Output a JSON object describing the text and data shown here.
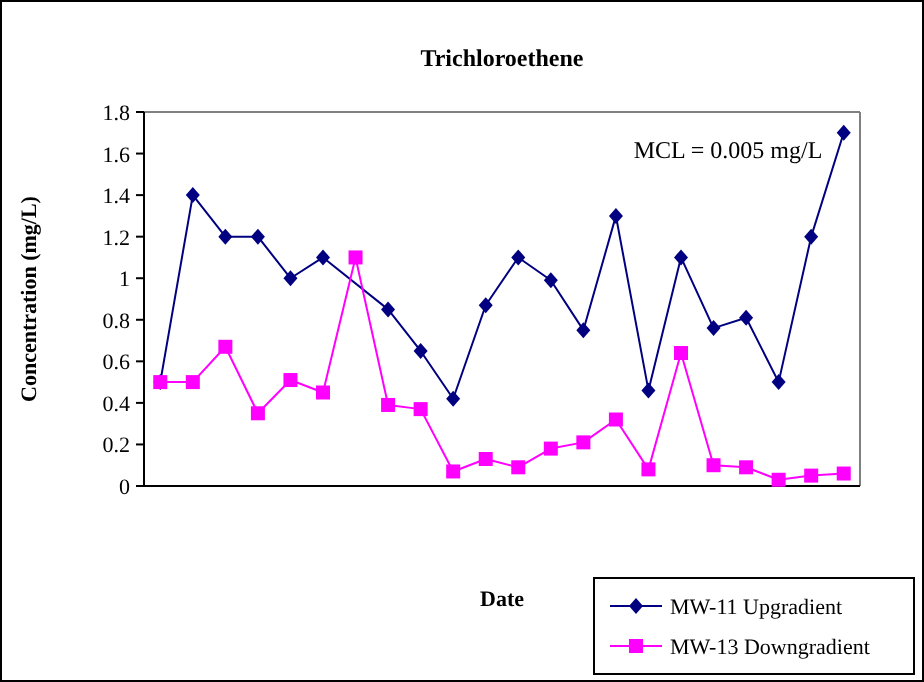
{
  "chart_data": {
    "type": "line",
    "title": "Trichloroethene",
    "xlabel": "Date",
    "ylabel": "Concentration (mg/L)",
    "annotations": [
      "MCL = 0.005 mg/L"
    ],
    "categories": [
      null,
      null,
      null,
      null,
      null,
      null,
      null,
      null,
      null,
      null,
      null,
      null,
      null,
      null,
      null,
      null,
      null,
      null,
      null,
      null,
      null,
      null
    ],
    "series": [
      {
        "name": "MW-11 Upgradient",
        "color": "#000080",
        "marker": "diamond",
        "values": [
          0.5,
          1.4,
          1.2,
          1.2,
          1.0,
          1.1,
          null,
          0.85,
          0.65,
          0.42,
          0.87,
          1.1,
          0.99,
          0.75,
          1.3,
          0.46,
          1.1,
          0.76,
          0.81,
          0.5,
          1.2,
          1.7
        ]
      },
      {
        "name": "MW-13 Downgradient",
        "color": "#ff00ff",
        "marker": "square",
        "values": [
          0.5,
          0.5,
          0.67,
          0.35,
          0.51,
          0.45,
          1.1,
          0.39,
          0.37,
          0.07,
          0.13,
          0.09,
          0.18,
          0.21,
          0.32,
          0.08,
          0.64,
          0.1,
          0.09,
          0.03,
          0.05,
          0.06
        ]
      }
    ],
    "ylim": [
      0,
      1.8
    ],
    "yticks": [
      0,
      0.2,
      0.4,
      0.6,
      0.8,
      1,
      1.2,
      1.4,
      1.6,
      1.8
    ],
    "legend": "bottom right",
    "grid": false
  }
}
